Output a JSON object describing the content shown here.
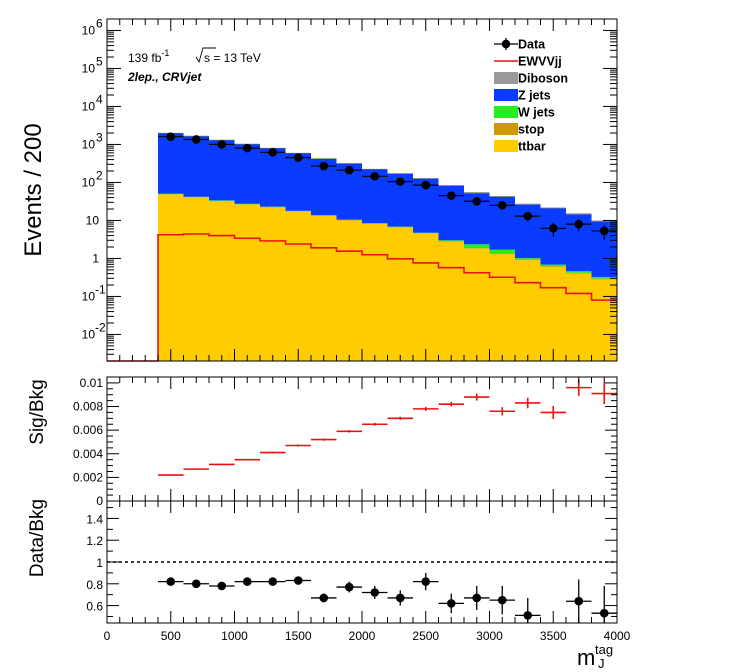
{
  "labels": {
    "ylabel_main": "Events / 200",
    "ylabel_ratio1": "Sig/Bkg",
    "ylabel_ratio2": "Data/Bkg",
    "xlabel_main": "m",
    "xlabel_sub": "J",
    "xlabel_sup": "tag",
    "lumi_prefix": "139 fb",
    "lumi_exp": "-1",
    "energy": "s = 13 TeV",
    "region": "2lep., CRVjet"
  },
  "chart_data": {
    "type": "bar",
    "x_edges": [
      0,
      200,
      400,
      600,
      800,
      1000,
      1200,
      1400,
      1600,
      1800,
      2000,
      2200,
      2400,
      2600,
      2800,
      3000,
      3200,
      3400,
      3600,
      3800,
      4000
    ],
    "xlim": [
      0,
      4000
    ],
    "x_ticks": [
      {
        "v": 0,
        "label": "0"
      },
      {
        "v": 500,
        "label": "500"
      },
      {
        "v": 1000,
        "label": "1000"
      },
      {
        "v": 1500,
        "label": "1500"
      },
      {
        "v": 2000,
        "label": "2000"
      },
      {
        "v": 2500,
        "label": "2500"
      },
      {
        "v": 3000,
        "label": "3000"
      },
      {
        "v": 3500,
        "label": "3500"
      },
      {
        "v": 4000,
        "label": "4000"
      }
    ],
    "main": {
      "log_y": true,
      "ylim": [
        0.002,
        2000000
      ],
      "y_ticks": [
        {
          "v": 0.01,
          "base": "10",
          "exp": "-2"
        },
        {
          "v": 0.1,
          "base": "10",
          "exp": "-1"
        },
        {
          "v": 1,
          "base": "1",
          "exp": ""
        },
        {
          "v": 10,
          "base": "10",
          "exp": ""
        },
        {
          "v": 100,
          "base": "10",
          "exp": "2"
        },
        {
          "v": 1000,
          "base": "10",
          "exp": "3"
        },
        {
          "v": 10000,
          "base": "10",
          "exp": "4"
        },
        {
          "v": 100000,
          "base": "10",
          "exp": "5"
        },
        {
          "v": 1000000,
          "base": "10",
          "exp": "6"
        }
      ],
      "stack": [
        {
          "name": "ttbar",
          "color": "#ffcc00",
          "values": [
            0,
            0,
            48,
            40,
            32,
            26,
            22,
            17,
            13,
            10,
            8,
            6.5,
            4.5,
            2.8,
            1.8,
            1.3,
            0.9,
            0.6,
            0.4,
            0.28
          ]
        },
        {
          "name": "stop",
          "color": "#cc9900",
          "values": [
            0,
            0,
            1,
            0.8,
            0.7,
            0.6,
            0.5,
            0.4,
            0.3,
            0.25,
            0.2,
            0.15,
            0.1,
            0.08,
            0.06,
            0.05,
            0.04,
            0.03,
            0.02,
            0.015
          ]
        },
        {
          "name": "W jets",
          "color": "#22ee22",
          "values": [
            0,
            0,
            1.5,
            1.2,
            1,
            0.8,
            0.6,
            0.5,
            0.4,
            0.3,
            0.25,
            0.2,
            0.15,
            0.12,
            0.5,
            0.35,
            0.08,
            0.06,
            0.04,
            0.03
          ]
        },
        {
          "name": "Z jets",
          "color": "#0a3cff",
          "values": [
            0,
            0,
            1900,
            1600,
            1250,
            980,
            760,
            560,
            400,
            300,
            210,
            160,
            120,
            78,
            50,
            40,
            25,
            20,
            14,
            9
          ]
        },
        {
          "name": "Diboson",
          "color": "#999999",
          "values": [
            0,
            0,
            30,
            25,
            20,
            16,
            13,
            10,
            8,
            6,
            5,
            4,
            3,
            2,
            1.5,
            1.2,
            0.9,
            0.7,
            0.5,
            0.4
          ]
        }
      ],
      "signal": {
        "name": "EWVVjj",
        "color": "#ee1111",
        "values": [
          0.002,
          0.002,
          4.2,
          4.4,
          4,
          3.4,
          2.9,
          2.4,
          1.9,
          1.55,
          1.25,
          0.98,
          0.76,
          0.57,
          0.42,
          0.32,
          0.23,
          0.17,
          0.12,
          0.08
        ]
      },
      "data": {
        "name": "Data",
        "values": [
          null,
          null,
          1600,
          1350,
          1000,
          800,
          620,
          450,
          270,
          210,
          145,
          105,
          85,
          45,
          32,
          25,
          13,
          6.2,
          8,
          5.3
        ]
      }
    },
    "ratio_sig_bkg": {
      "ylim": [
        0,
        0.0105
      ],
      "y_ticks": [
        {
          "v": 0,
          "label": "0"
        },
        {
          "v": 0.002,
          "label": "0.002"
        },
        {
          "v": 0.004,
          "label": "0.004"
        },
        {
          "v": 0.006,
          "label": "0.006"
        },
        {
          "v": 0.008,
          "label": "0.008"
        },
        {
          "v": 0.01,
          "label": "0.01"
        }
      ],
      "values": [
        null,
        null,
        0.0022,
        0.0027,
        0.0031,
        0.0035,
        0.0041,
        0.0047,
        0.0052,
        0.0059,
        0.0065,
        0.007,
        0.0078,
        0.0082,
        0.0088,
        0.0076,
        0.0083,
        0.0075,
        0.0096,
        0.0091
      ],
      "errors": [
        null,
        null,
        5e-05,
        5e-05,
        6e-05,
        7e-05,
        8e-05,
        9e-05,
        0.0001,
        0.00011,
        0.00012,
        0.00014,
        0.00017,
        0.0002,
        0.0003,
        0.00035,
        0.00045,
        0.00055,
        0.0007,
        0.0009
      ]
    },
    "ratio_data_bkg": {
      "ylim": [
        0.44,
        1.56
      ],
      "y_ticks": [
        {
          "v": 0.6,
          "label": "0.6"
        },
        {
          "v": 0.8,
          "label": "0.8"
        },
        {
          "v": 1,
          "label": "1"
        },
        {
          "v": 1.2,
          "label": "1.2"
        },
        {
          "v": 1.4,
          "label": "1.4"
        }
      ],
      "reference": 1,
      "values": [
        null,
        null,
        0.82,
        0.8,
        0.78,
        0.82,
        0.82,
        0.83,
        0.67,
        0.77,
        0.72,
        0.67,
        0.82,
        0.62,
        0.67,
        0.65,
        0.51,
        null,
        0.64,
        0.53
      ],
      "errors": [
        null,
        null,
        0.02,
        0.02,
        0.02,
        0.025,
        0.03,
        0.03,
        0.04,
        0.05,
        0.06,
        0.07,
        0.08,
        0.09,
        0.11,
        0.13,
        0.16,
        null,
        0.2,
        0.25
      ]
    },
    "legend": {
      "placement": "top-right",
      "entries": [
        {
          "label": "Data",
          "kind": "marker",
          "color": "#000000"
        },
        {
          "label": "EWVVjj",
          "kind": "line",
          "color": "#ee1111"
        },
        {
          "label": "Diboson",
          "kind": "box",
          "color": "#999999"
        },
        {
          "label": "Z jets",
          "kind": "box",
          "color": "#0a3cff"
        },
        {
          "label": "W jets",
          "kind": "box",
          "color": "#22ee22"
        },
        {
          "label": "stop",
          "kind": "box",
          "color": "#cc9900"
        },
        {
          "label": "ttbar",
          "kind": "box",
          "color": "#ffcc00"
        }
      ]
    }
  }
}
